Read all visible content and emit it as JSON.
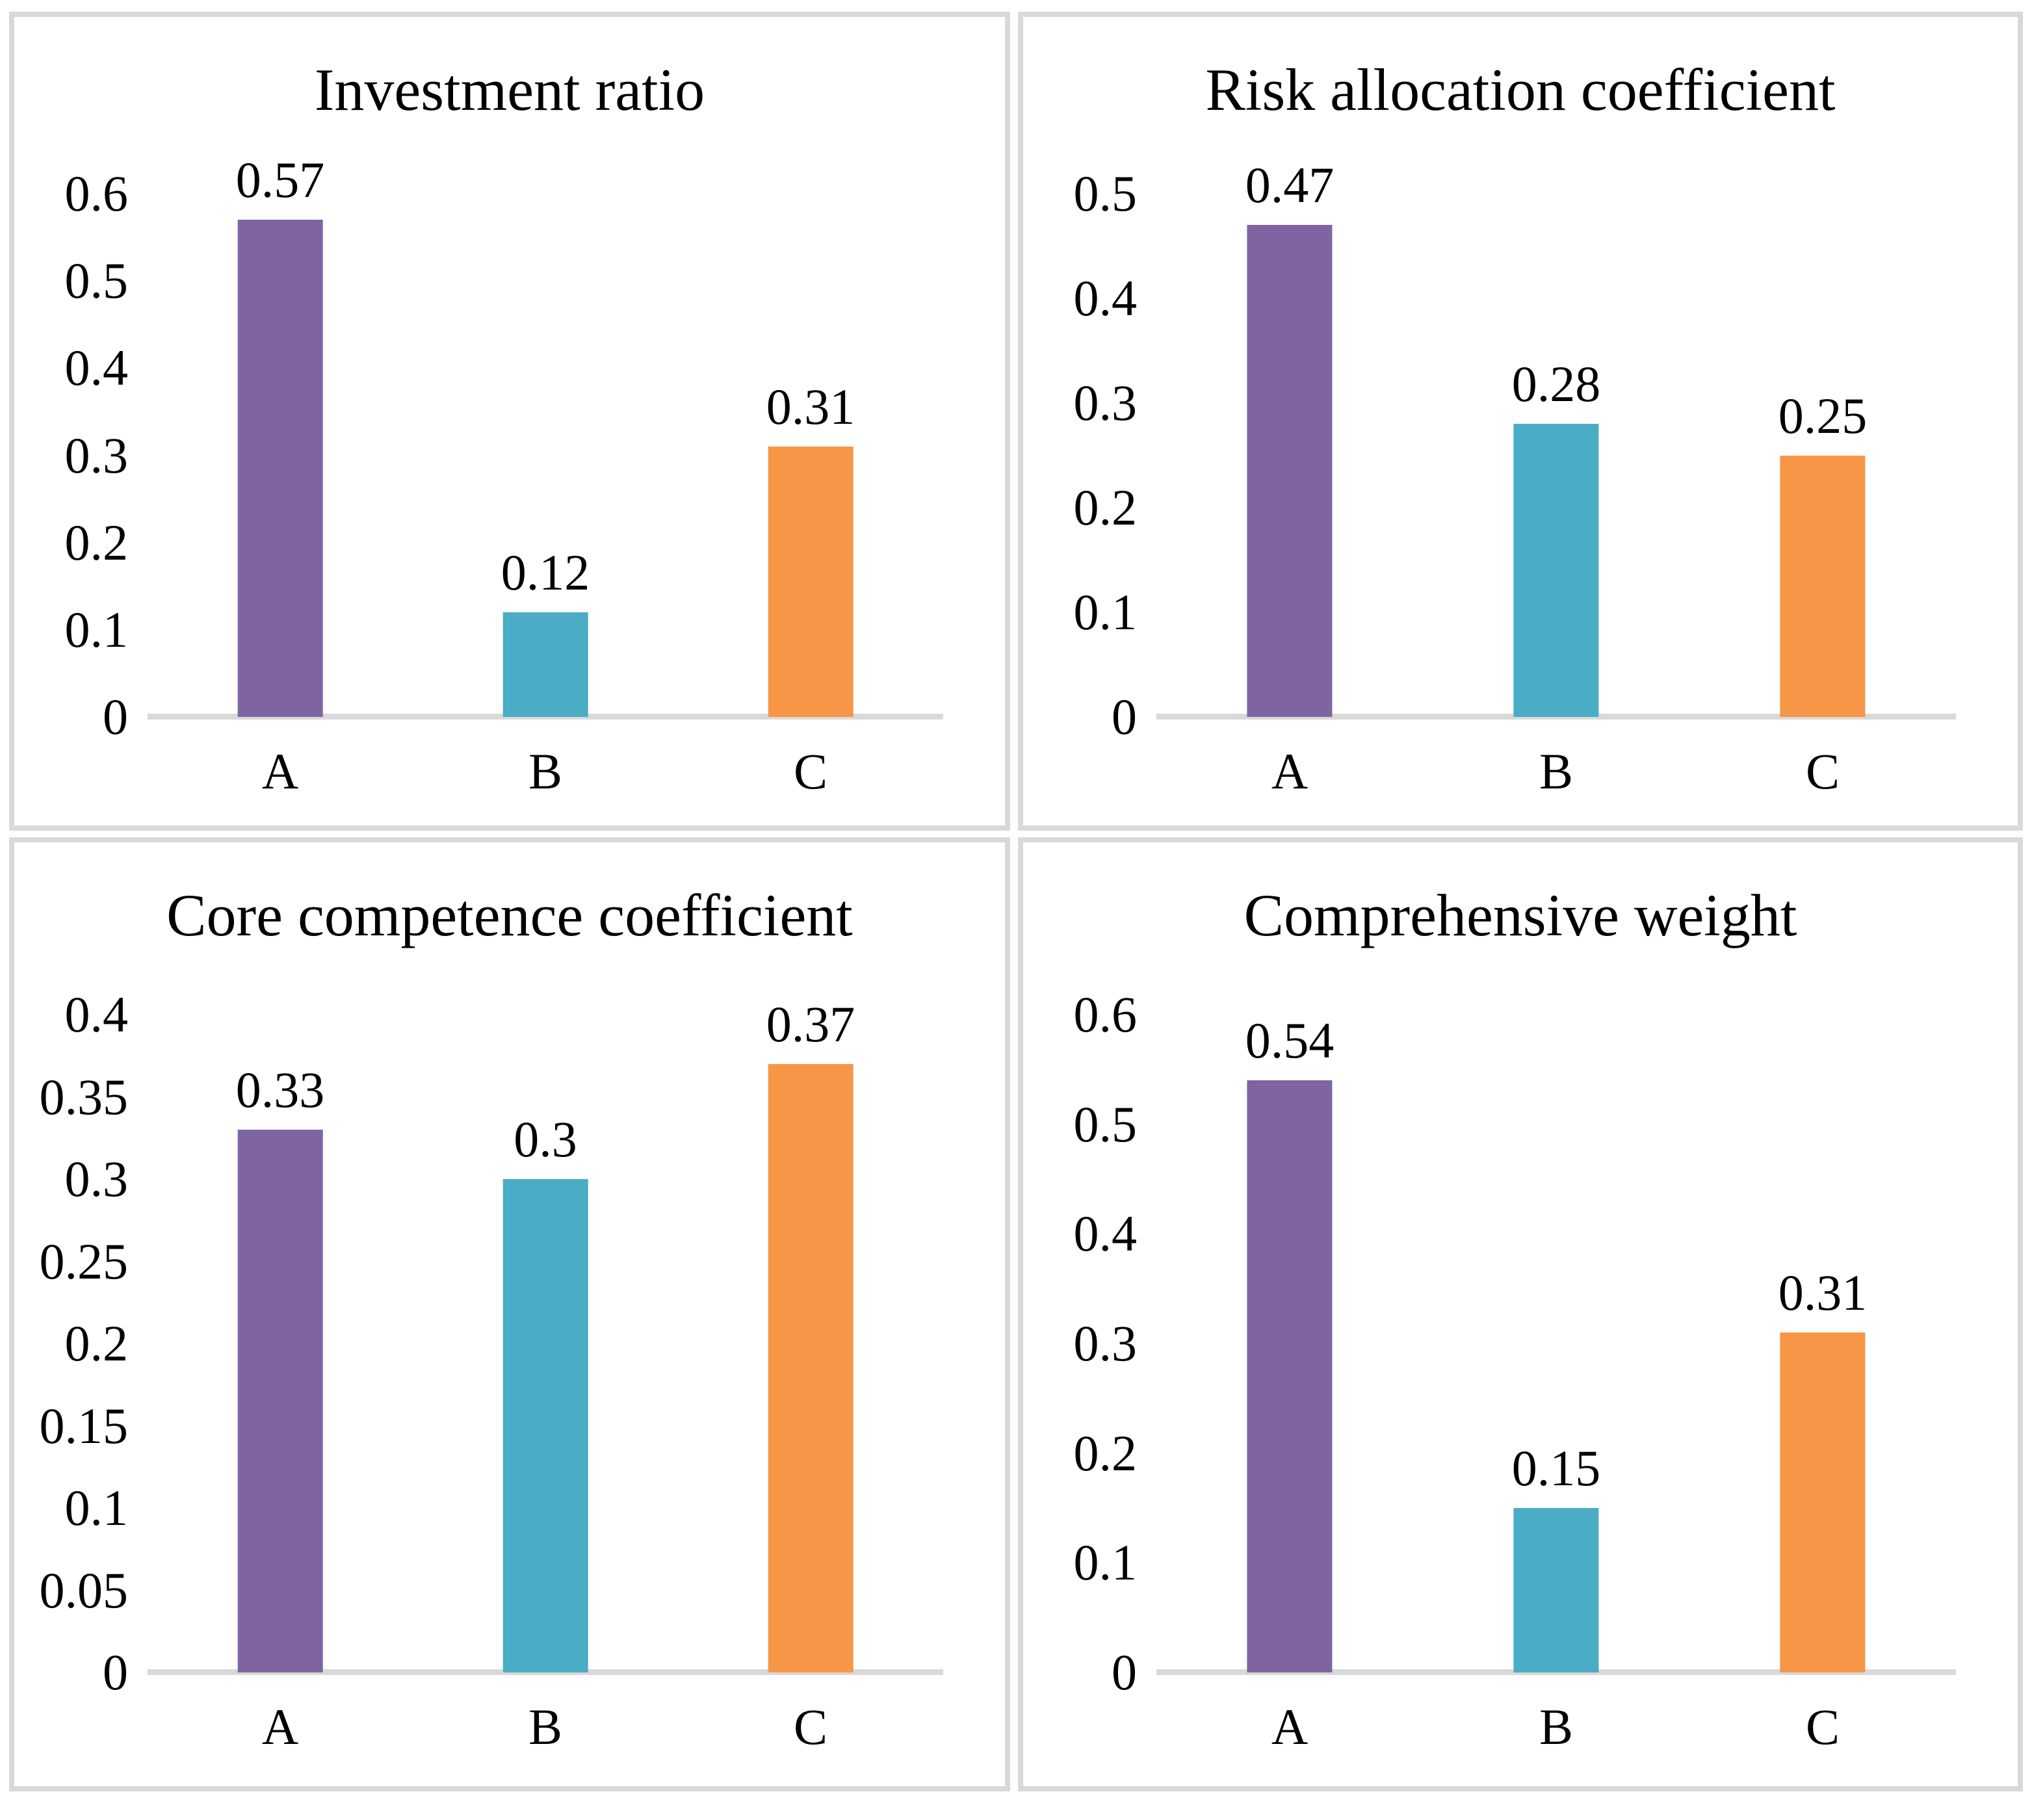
{
  "page": {
    "background": "#FFFFFF"
  },
  "colors": {
    "panel_border": "#D9D9D9",
    "axis_line": "#D9D9D9",
    "text": "#000000",
    "series": [
      "#7E65A2",
      "#4BACC6",
      "#F79646"
    ]
  },
  "chart_data": [
    {
      "type": "bar",
      "title": "Investment ratio",
      "categories": [
        "A",
        "B",
        "C"
      ],
      "values": [
        0.57,
        0.12,
        0.31
      ],
      "data_labels": [
        "0.57",
        "0.12",
        "0.31"
      ],
      "ylim": [
        0,
        0.6
      ],
      "yticks": [
        "0.6",
        "0.5",
        "0.4",
        "0.3",
        "0.2",
        "0.1",
        "0"
      ],
      "grid": false,
      "legend": "none"
    },
    {
      "type": "bar",
      "title": "Risk allocation coefficient",
      "categories": [
        "A",
        "B",
        "C"
      ],
      "values": [
        0.47,
        0.28,
        0.25
      ],
      "data_labels": [
        "0.47",
        "0.28",
        "0.25"
      ],
      "ylim": [
        0,
        0.5
      ],
      "yticks": [
        "0.5",
        "0.4",
        "0.3",
        "0.2",
        "0.1",
        "0"
      ],
      "grid": false,
      "legend": "none"
    },
    {
      "type": "bar",
      "title": "Core competence coefficient",
      "categories": [
        "A",
        "B",
        "C"
      ],
      "values": [
        0.33,
        0.3,
        0.37
      ],
      "data_labels": [
        "0.33",
        "0.3",
        "0.37"
      ],
      "ylim": [
        0,
        0.4
      ],
      "yticks": [
        "0.4",
        "0.35",
        "0.3",
        "0.25",
        "0.2",
        "0.15",
        "0.1",
        "0.05",
        "0"
      ],
      "grid": false,
      "legend": "none"
    },
    {
      "type": "bar",
      "title": "Comprehensive weight",
      "categories": [
        "A",
        "B",
        "C"
      ],
      "values": [
        0.54,
        0.15,
        0.31
      ],
      "data_labels": [
        "0.54",
        "0.15",
        "0.31"
      ],
      "ylim": [
        0,
        0.6
      ],
      "yticks": [
        "0.6",
        "0.5",
        "0.4",
        "0.3",
        "0.2",
        "0.1",
        "0"
      ],
      "grid": false,
      "legend": "none"
    }
  ]
}
